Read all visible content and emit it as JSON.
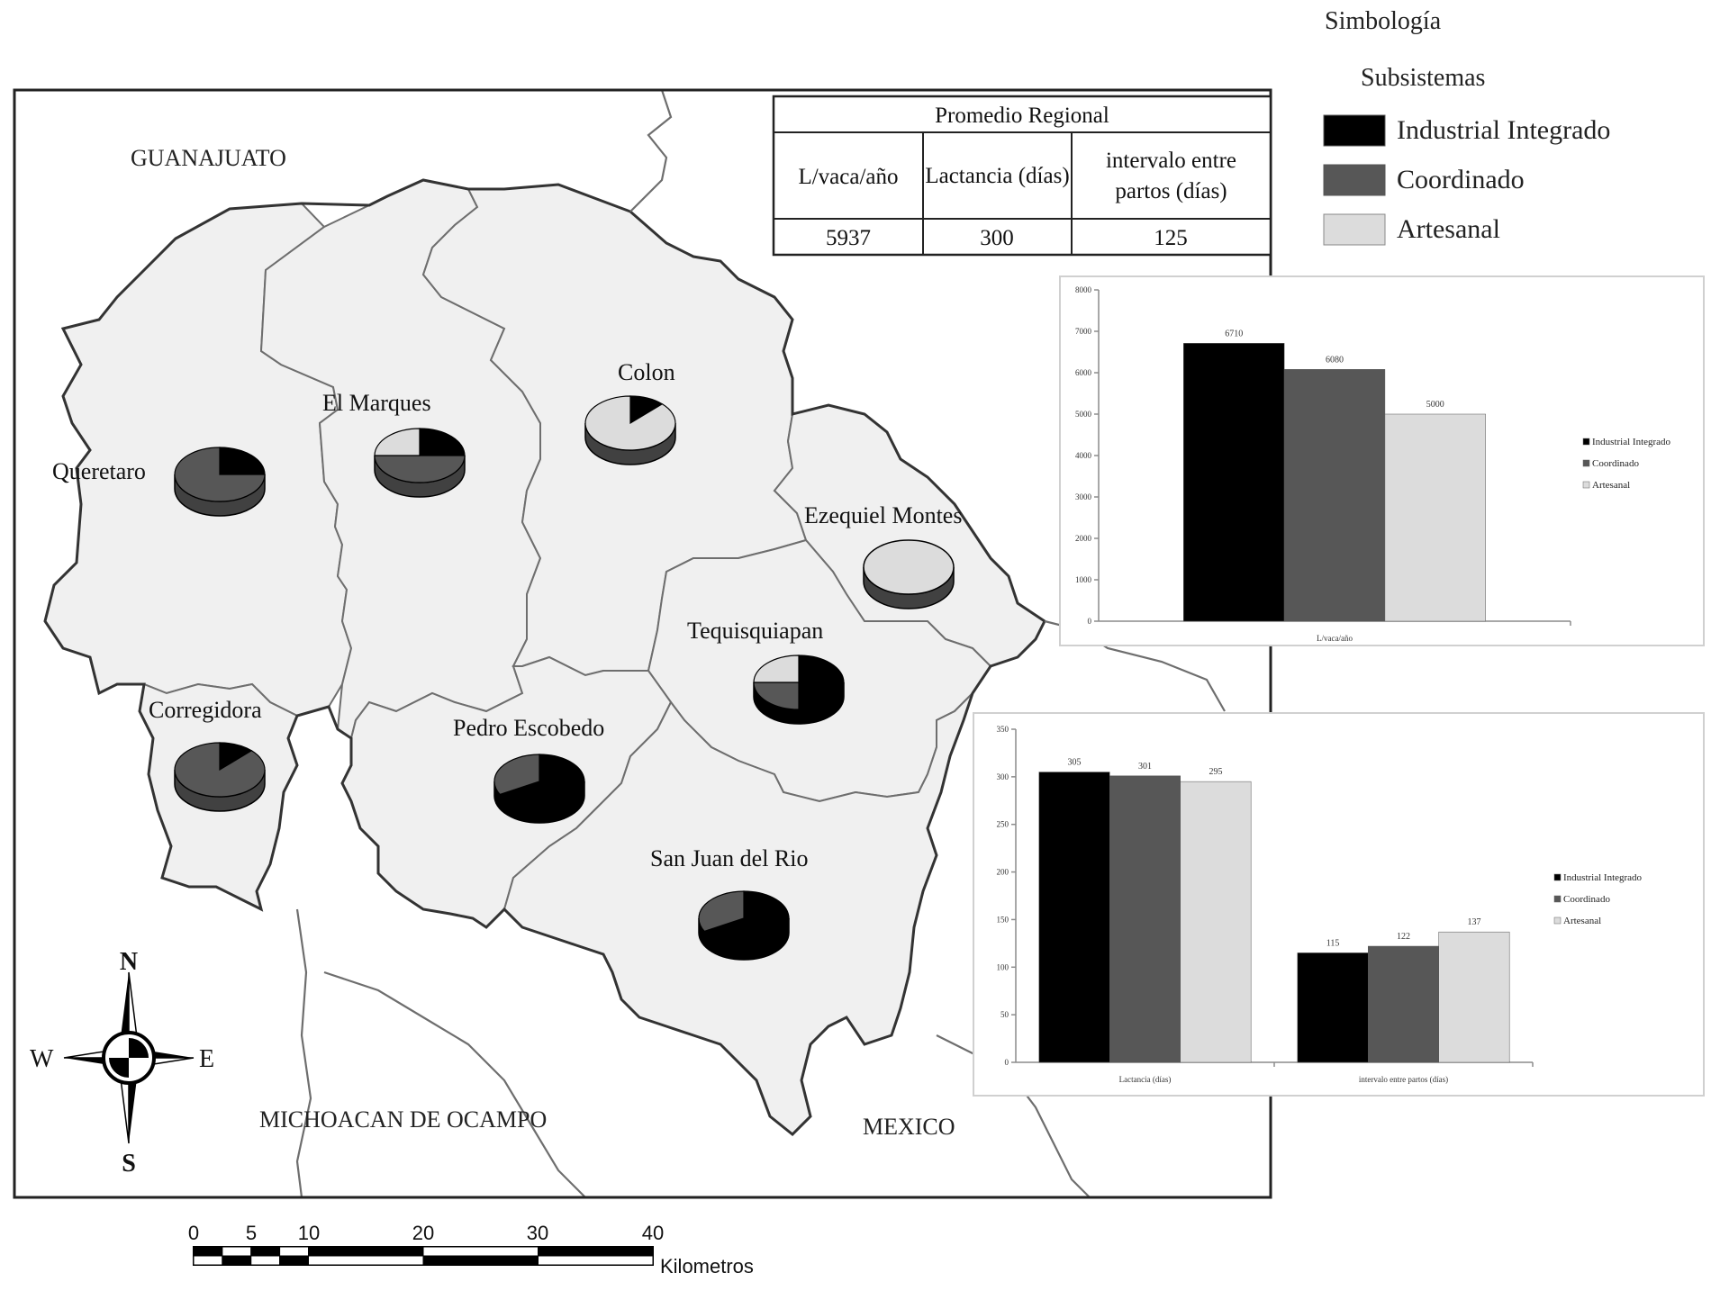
{
  "colors": {
    "industrial": "#000000",
    "coordinado": "#575757",
    "artesanal": "#dcdcdc"
  },
  "legend": {
    "title": "Simbología",
    "subtitle": "Subsistemas",
    "items": [
      {
        "label": "Industrial Integrado",
        "color": "#000000"
      },
      {
        "label": "Coordinado",
        "color": "#575757"
      },
      {
        "label": "Artesanal",
        "color": "#dcdcdc"
      }
    ]
  },
  "regional_table": {
    "title": "Promedio Regional",
    "headers": [
      "L/vaca/año",
      "Lactancia (días)",
      "intervalo entre partos (días)"
    ],
    "values": [
      "5937",
      "300",
      "125"
    ]
  },
  "map": {
    "states": {
      "guanajuato": "GUANAJUATO",
      "michoacan": "MICHOACAN DE OCAMPO",
      "mexico": "MEXICO"
    },
    "municipalities": {
      "queretaro": "Queretaro",
      "el_marques": "El Marques",
      "colon": "Colon",
      "ezequiel_montes": "Ezequiel Montes",
      "tequisquiapan": "Tequisquiapan",
      "corregidora": "Corregidora",
      "pedro_escobedo": "Pedro Escobedo",
      "san_juan": "San Juan del Rio"
    },
    "pies": [
      {
        "municipality": "Queretaro",
        "industrial": 0.25,
        "coordinado": 0.75,
        "artesanal": 0.0
      },
      {
        "municipality": "El Marques",
        "industrial": 0.25,
        "coordinado": 0.5,
        "artesanal": 0.25
      },
      {
        "municipality": "Colon",
        "industrial": 0.125,
        "coordinado": 0.0,
        "artesanal": 0.875
      },
      {
        "municipality": "Ezequiel Montes",
        "industrial": 0.0,
        "coordinado": 0.0,
        "artesanal": 1.0
      },
      {
        "municipality": "Tequisquiapan",
        "industrial": 0.5,
        "coordinado": 0.25,
        "artesanal": 0.25
      },
      {
        "municipality": "Corregidora",
        "industrial": 0.125,
        "coordinado": 0.875,
        "artesanal": 0.0
      },
      {
        "municipality": "Pedro Escobedo",
        "industrial": 0.67,
        "coordinado": 0.33,
        "artesanal": 0.0
      },
      {
        "municipality": "San Juan del Rio",
        "industrial": 0.67,
        "coordinado": 0.33,
        "artesanal": 0.0
      }
    ],
    "compass": {
      "n": "N",
      "s": "S",
      "e": "E",
      "w": "W"
    },
    "scale": {
      "ticks": [
        "0",
        "5",
        "10",
        "20",
        "30",
        "40"
      ],
      "unit": "Kilometros"
    }
  },
  "chart_data": [
    {
      "type": "bar",
      "categories": [
        "L/vaca/año"
      ],
      "series": [
        {
          "name": "Industrial Integrado",
          "values": [
            6710
          ]
        },
        {
          "name": "Coordinado",
          "values": [
            6080
          ]
        },
        {
          "name": "Artesanal",
          "values": [
            5000
          ]
        }
      ],
      "ylim": [
        0,
        8000
      ],
      "yticks": [
        "0",
        "1000",
        "2000",
        "3000",
        "4000",
        "5000",
        "6000",
        "7000",
        "8000"
      ],
      "data_labels": [
        "6710",
        "6080",
        "5000"
      ],
      "legend_position": "right"
    },
    {
      "type": "bar",
      "categories": [
        "Lactancia (días)",
        "intervalo entre partos (días)"
      ],
      "series": [
        {
          "name": "Industrial Integrado",
          "values": [
            305,
            115
          ]
        },
        {
          "name": "Coordinado",
          "values": [
            301,
            122
          ]
        },
        {
          "name": "Artesanal",
          "values": [
            295,
            137
          ]
        }
      ],
      "ylim": [
        0,
        350
      ],
      "yticks": [
        "0",
        "50",
        "100",
        "150",
        "200",
        "250",
        "300",
        "350"
      ],
      "data_labels": [
        [
          "305",
          "115"
        ],
        [
          "301",
          "122"
        ],
        [
          "295",
          "137"
        ]
      ],
      "legend_position": "right"
    }
  ]
}
